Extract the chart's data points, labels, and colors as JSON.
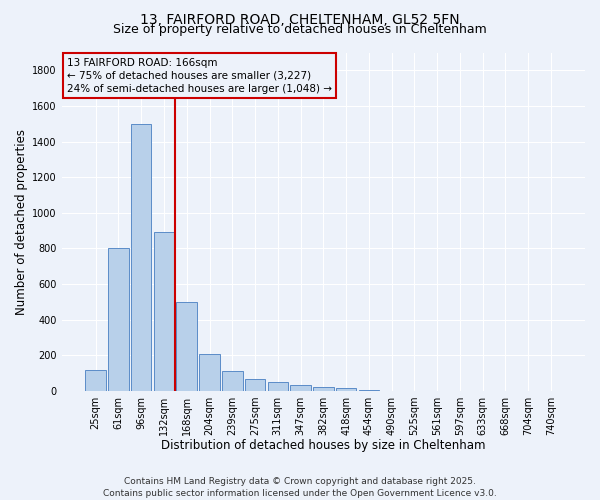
{
  "title_line1": "13, FAIRFORD ROAD, CHELTENHAM, GL52 5FN",
  "title_line2": "Size of property relative to detached houses in Cheltenham",
  "xlabel": "Distribution of detached houses by size in Cheltenham",
  "ylabel": "Number of detached properties",
  "categories": [
    "25sqm",
    "61sqm",
    "96sqm",
    "132sqm",
    "168sqm",
    "204sqm",
    "239sqm",
    "275sqm",
    "311sqm",
    "347sqm",
    "382sqm",
    "418sqm",
    "454sqm",
    "490sqm",
    "525sqm",
    "561sqm",
    "597sqm",
    "633sqm",
    "668sqm",
    "704sqm",
    "740sqm"
  ],
  "values": [
    120,
    800,
    1500,
    890,
    500,
    210,
    110,
    65,
    50,
    35,
    25,
    15,
    5,
    2,
    2,
    2,
    1,
    1,
    1,
    1,
    1
  ],
  "bar_color": "#b8d0ea",
  "bar_edge_color": "#5b8cc8",
  "vline_color": "#cc0000",
  "annotation_text": "13 FAIRFORD ROAD: 166sqm\n← 75% of detached houses are smaller (3,227)\n24% of semi-detached houses are larger (1,048) →",
  "annotation_box_color": "#cc0000",
  "ylim": [
    0,
    1900
  ],
  "yticks": [
    0,
    200,
    400,
    600,
    800,
    1000,
    1200,
    1400,
    1600,
    1800
  ],
  "footer_text": "Contains HM Land Registry data © Crown copyright and database right 2025.\nContains public sector information licensed under the Open Government Licence v3.0.",
  "background_color": "#edf2fa",
  "grid_color": "#ffffff",
  "title_fontsize": 10,
  "subtitle_fontsize": 9,
  "axis_label_fontsize": 8.5,
  "tick_fontsize": 7,
  "footer_fontsize": 6.5,
  "annotation_fontsize": 7.5
}
